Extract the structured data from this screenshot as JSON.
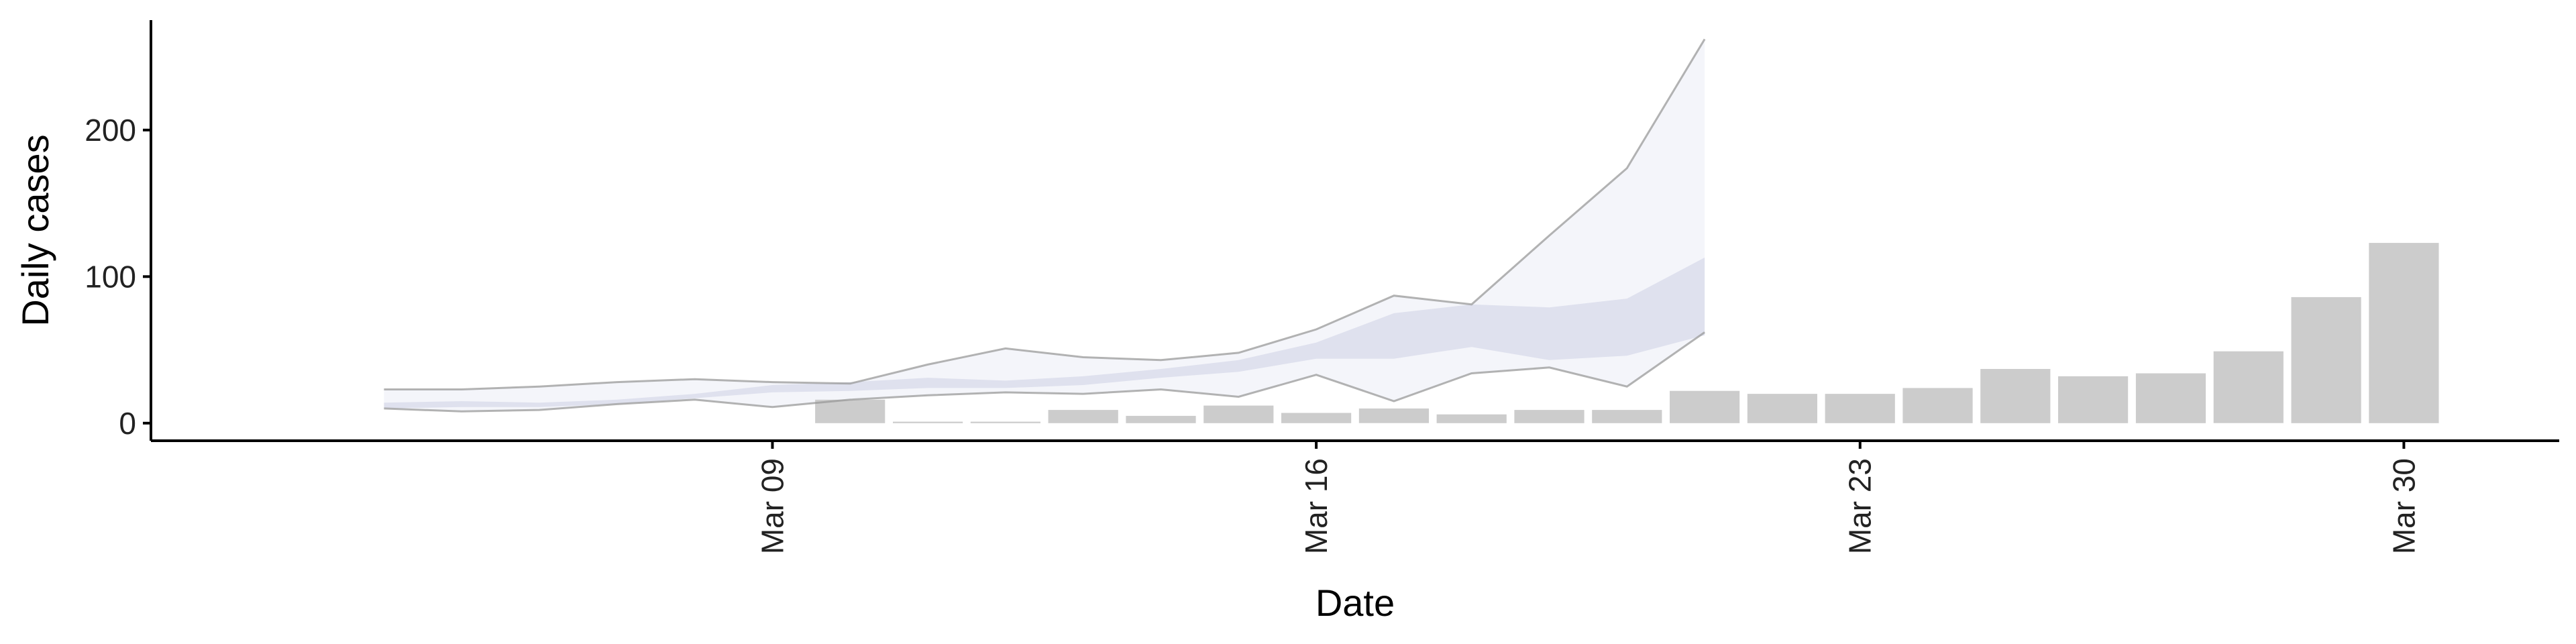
{
  "chart_data": {
    "type": "bar",
    "title": "",
    "xlabel": "Date",
    "ylabel": "Daily cases",
    "ylim": [
      -12,
      275
    ],
    "xlim": [
      "2020-03-01",
      "2020-04-01"
    ],
    "y_ticks": [
      0,
      100,
      200
    ],
    "x_ticks": [
      "2020-03-09",
      "2020-03-16",
      "2020-03-23",
      "2020-03-30"
    ],
    "x_tick_labels": [
      "Mar 09",
      "Mar 16",
      "Mar 23",
      "Mar 30"
    ],
    "grid": false,
    "legend": "none",
    "colors": {
      "bars": "#cccccc",
      "outer_band": "#f4f5fa",
      "inner_band": "#dfe1ee",
      "bound_line": "#9a9a9a",
      "axis": "#000000"
    },
    "reported_cases": [
      {
        "date": "2020-03-10",
        "value": 16
      },
      {
        "date": "2020-03-11",
        "value": 1
      },
      {
        "date": "2020-03-12",
        "value": 1
      },
      {
        "date": "2020-03-13",
        "value": 9
      },
      {
        "date": "2020-03-14",
        "value": 5
      },
      {
        "date": "2020-03-15",
        "value": 12
      },
      {
        "date": "2020-03-16",
        "value": 7
      },
      {
        "date": "2020-03-17",
        "value": 10
      },
      {
        "date": "2020-03-18",
        "value": 6
      },
      {
        "date": "2020-03-19",
        "value": 9
      },
      {
        "date": "2020-03-20",
        "value": 9
      },
      {
        "date": "2020-03-21",
        "value": 22
      },
      {
        "date": "2020-03-22",
        "value": 20
      },
      {
        "date": "2020-03-23",
        "value": 20
      },
      {
        "date": "2020-03-24",
        "value": 24
      },
      {
        "date": "2020-03-25",
        "value": 37
      },
      {
        "date": "2020-03-26",
        "value": 32
      },
      {
        "date": "2020-03-27",
        "value": 34
      },
      {
        "date": "2020-03-28",
        "value": 49
      },
      {
        "date": "2020-03-29",
        "value": 86
      },
      {
        "date": "2020-03-30",
        "value": 123
      }
    ],
    "estimate": {
      "dates": [
        "2020-03-04",
        "2020-03-05",
        "2020-03-06",
        "2020-03-07",
        "2020-03-08",
        "2020-03-09",
        "2020-03-10",
        "2020-03-11",
        "2020-03-12",
        "2020-03-13",
        "2020-03-14",
        "2020-03-15",
        "2020-03-16",
        "2020-03-17",
        "2020-03-18",
        "2020-03-19",
        "2020-03-20",
        "2020-03-21"
      ],
      "outer_lower": [
        10,
        8,
        9,
        13,
        16,
        11,
        16,
        19,
        21,
        20,
        23,
        18,
        33,
        15,
        34,
        38,
        25,
        62
      ],
      "outer_upper": [
        23,
        23,
        25,
        28,
        30,
        28,
        27,
        40,
        51,
        45,
        43,
        48,
        64,
        87,
        81,
        128,
        174,
        262
      ],
      "inner_lower": [
        10,
        11,
        11,
        13,
        17,
        21,
        22,
        24,
        24,
        26,
        31,
        35,
        44,
        44,
        52,
        43,
        46,
        60
      ],
      "inner_upper": [
        14,
        15,
        14,
        16,
        20,
        26,
        28,
        31,
        29,
        32,
        37,
        43,
        55,
        75,
        81,
        79,
        85,
        113
      ]
    }
  }
}
